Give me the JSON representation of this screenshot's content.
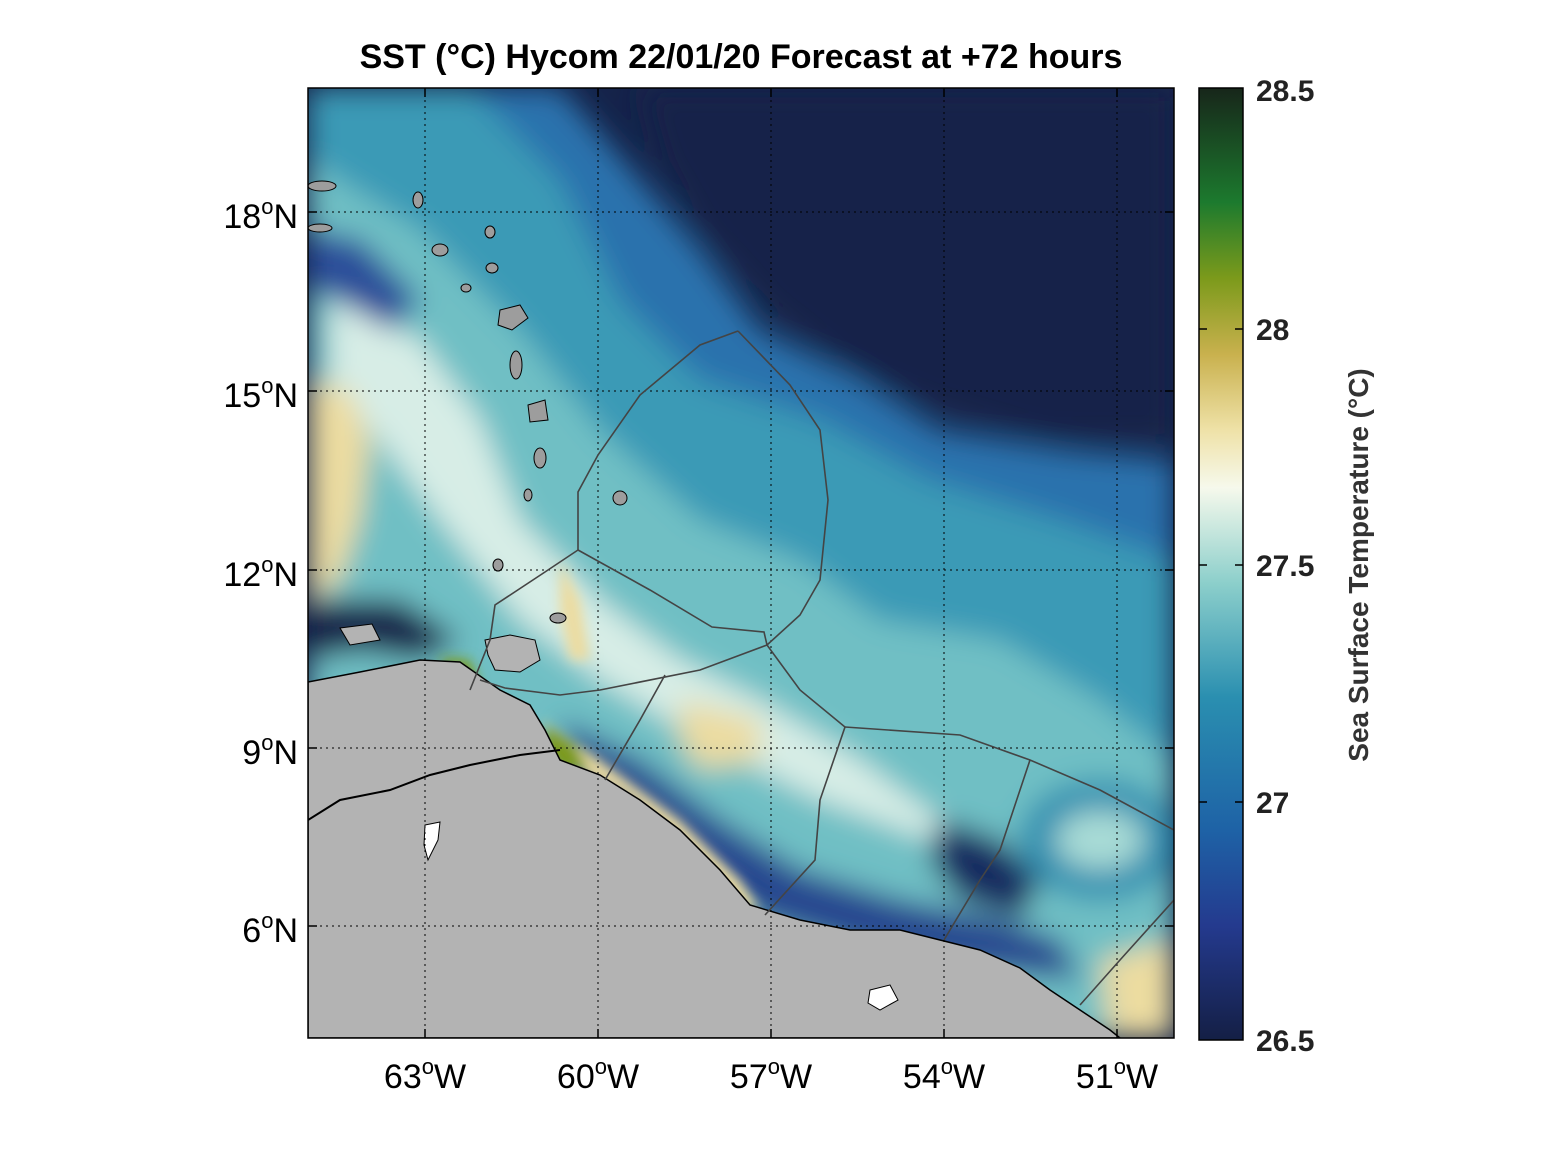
{
  "title": "SST (°C) Hycom 22/01/20 Forecast at +72 hours",
  "colorbar": {
    "label": "Sea Surface Temperature (°C)",
    "ticks": [
      "28.5",
      "28",
      "27.5",
      "27",
      "26.5"
    ],
    "min": 26.5,
    "max": 28.5
  },
  "axes": {
    "lon_ticks": [
      "63",
      "60",
      "57",
      "54",
      "51"
    ],
    "lon_suffix": "W",
    "lat_ticks": [
      "18",
      "15",
      "12",
      "9",
      "6"
    ],
    "lat_suffix": "N",
    "degree_symbol": "o"
  },
  "colors": {
    "deep_ocean": "#14234a",
    "cool": "#2a5aa8",
    "mid": "#2f8fb0",
    "warm_light": "#cde9e6",
    "warmest_yellow": "#e9d58f",
    "green": "#5f8f1a",
    "land": "#b3b3b3"
  }
}
